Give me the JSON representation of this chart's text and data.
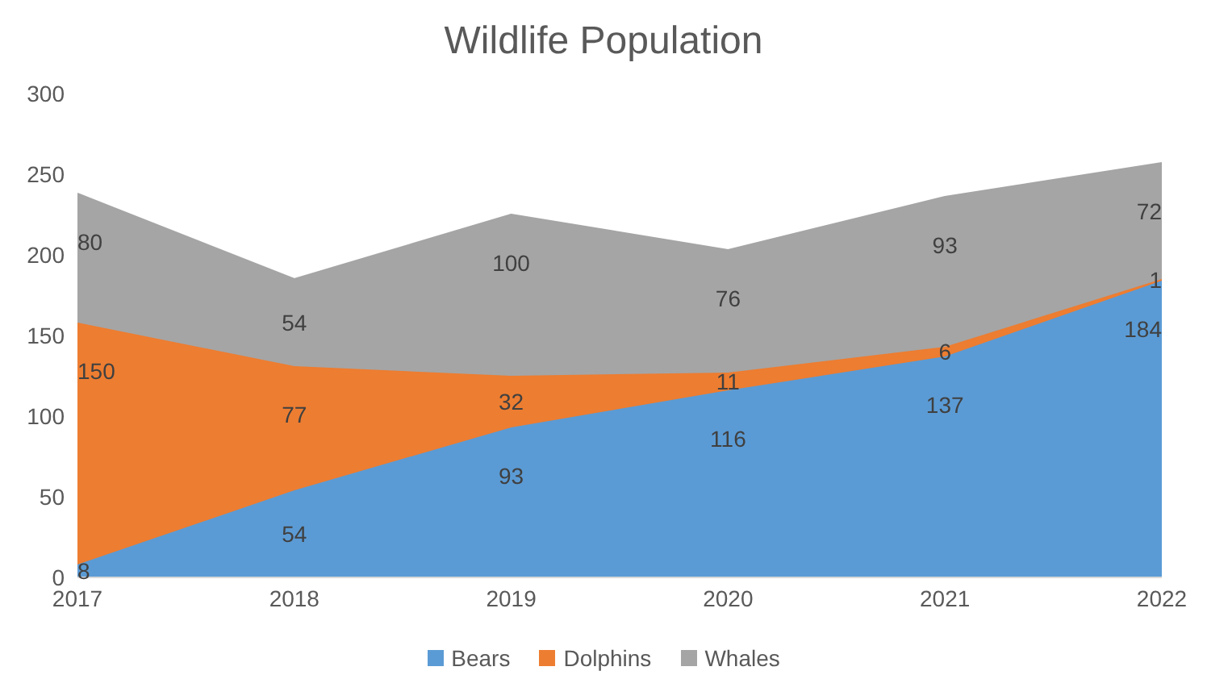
{
  "chart_data": {
    "type": "area",
    "title": "Wildlife Population",
    "categories": [
      "2017",
      "2018",
      "2019",
      "2020",
      "2021",
      "2022"
    ],
    "stacked": true,
    "ylim": [
      0,
      300
    ],
    "yticks": [
      0,
      50,
      100,
      150,
      200,
      250,
      300
    ],
    "data_labels": true,
    "legend": "bottom",
    "series": [
      {
        "name": "Bears",
        "color": "#5b9bd5",
        "values": [
          8,
          54,
          93,
          116,
          137,
          184
        ]
      },
      {
        "name": "Dolphins",
        "color": "#ed7d31",
        "values": [
          150,
          77,
          32,
          11,
          6,
          1
        ]
      },
      {
        "name": "Whales",
        "color": "#a5a5a5",
        "values": [
          80,
          54,
          100,
          76,
          93,
          72
        ]
      }
    ]
  }
}
